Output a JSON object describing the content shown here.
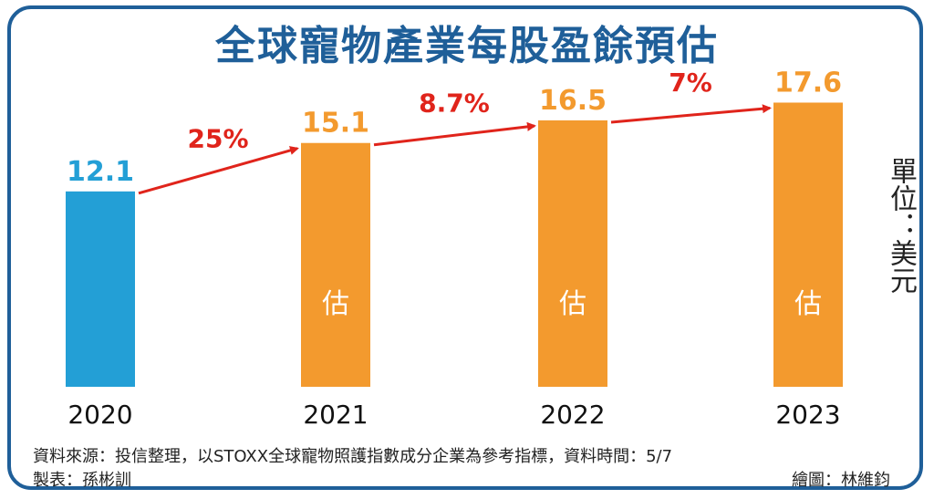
{
  "chart_data": {
    "type": "bar",
    "title": "全球寵物產業每股盈餘預估",
    "unit_label": "單位：美元",
    "categories": [
      "2020",
      "2021",
      "2022",
      "2023"
    ],
    "values": [
      12.1,
      15.1,
      16.5,
      17.6
    ],
    "value_labels": [
      "12.1",
      "15.1",
      "16.5",
      "17.6"
    ],
    "estimate_flags": [
      false,
      true,
      true,
      true
    ],
    "estimate_label": "估",
    "growth_labels": [
      "25%",
      "8.7%",
      "7%"
    ],
    "colors": {
      "actual": "#239fd6",
      "estimate": "#f39a2e",
      "arrow": "#e0241b",
      "title": "#1f5f99"
    },
    "ylim": [
      0,
      18
    ],
    "grid": false,
    "legend": "none"
  },
  "footer": {
    "source": "資料來源：投信整理，以STOXX全球寵物照護指數成分企業為參考指標，資料時間：5/7",
    "maker": "製表：孫彬訓",
    "artist": "繪圖：林維鈞"
  }
}
